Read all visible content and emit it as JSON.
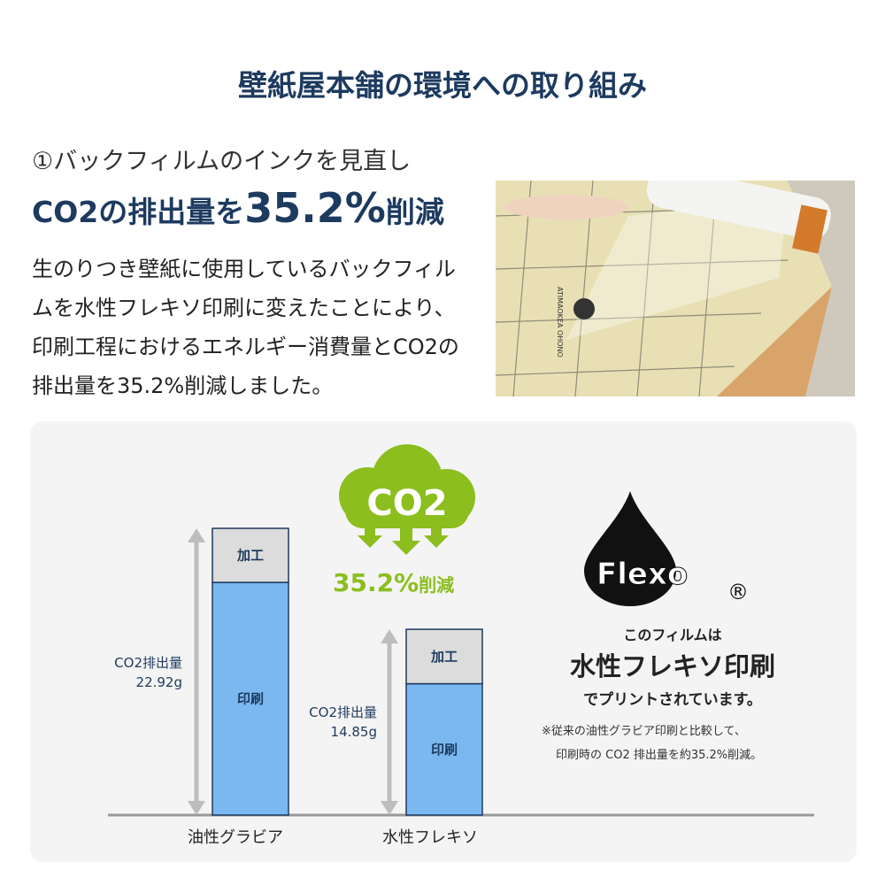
{
  "title": "壁紙屋本舗の環境への取り組み",
  "subtitle": "①バックフィルムのインクを見直し",
  "headline": {
    "prefix": "CO2の排出量を",
    "value": "35.2%",
    "suffix": "削減"
  },
  "body": "生のりつき壁紙に使用しているバックフィルムを水性フレキソ印刷に変えたことにより、印刷工程におけるエネルギー消費量とCO2の排出量を35.2%削減しました。",
  "photo_logo_text": "ATIMAOKEA OHONO",
  "cloud": {
    "label": "CO2",
    "reduction": "35.2%",
    "reduction_suffix": "削減"
  },
  "flexo": {
    "logo": "Flexo",
    "registered": "®",
    "line1": "このフィルムは",
    "line2": "水性フレキソ印刷",
    "line3": "でプリントされています。",
    "note1": "※従来の油性グラビア印刷と比較して、",
    "note2": "印刷時の CO2 排出量を約35.2%削減。"
  },
  "colors": {
    "navy": "#1d3a5f",
    "bar_blue": "#7bb8ef",
    "bar_gray": "#dcdcdc",
    "green": "#8cbe1e",
    "arrow_gray": "#bdbdbd"
  },
  "chart_data": {
    "type": "bar",
    "stacked": true,
    "categories": [
      "油性グラビア",
      "水性フレキソ"
    ],
    "series": [
      {
        "name": "印刷",
        "values": [
          18.6,
          10.5
        ]
      },
      {
        "name": "加工",
        "values": [
          4.32,
          4.35
        ]
      }
    ],
    "totals": [
      22.92,
      14.85
    ],
    "total_labels": [
      {
        "label": "CO2排出量",
        "value": "22.92g"
      },
      {
        "label": "CO2排出量",
        "value": "14.85g"
      }
    ],
    "ylim": [
      0,
      22.92
    ],
    "grid": false
  }
}
